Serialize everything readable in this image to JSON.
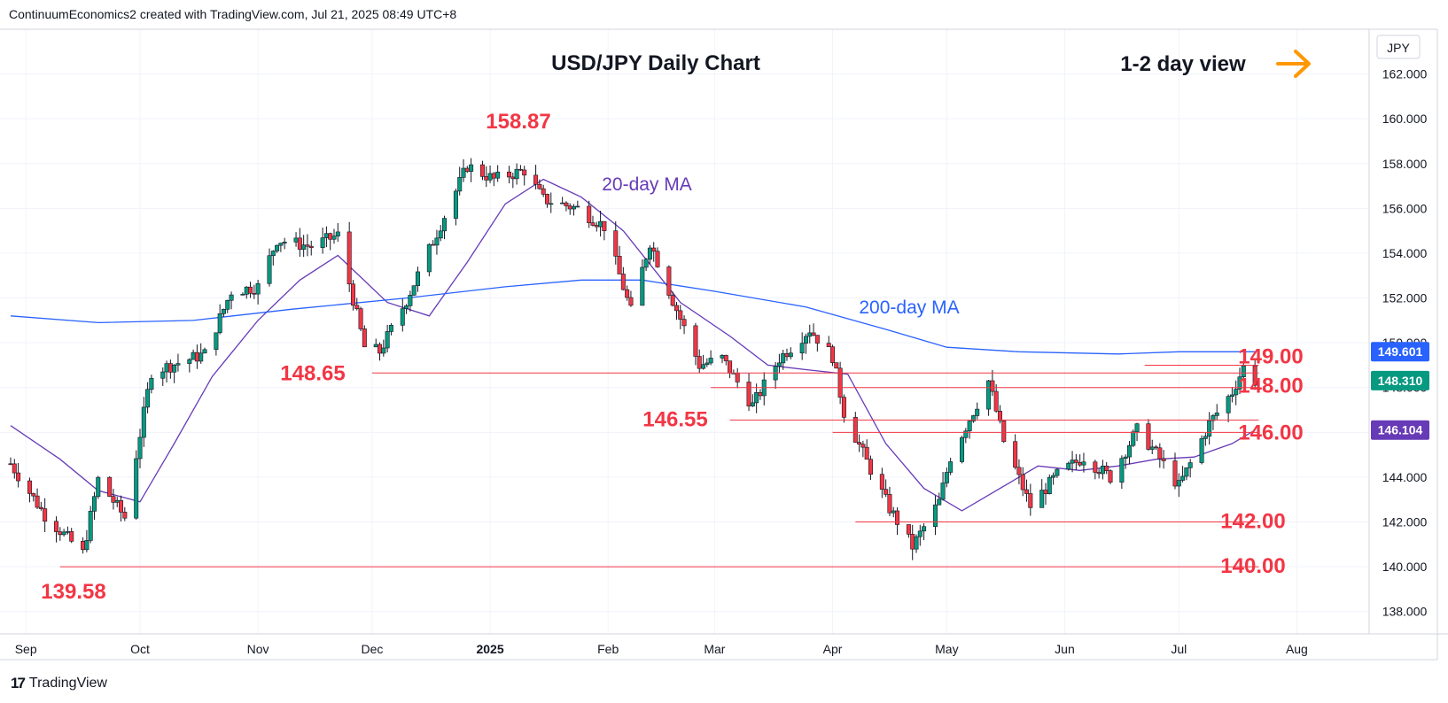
{
  "header": {
    "attribution": "ContinuumEconomics2 created with TradingView.com, Jul 21, 2025 08:49 UTC+8"
  },
  "footer": {
    "brand": "TradingView",
    "logo_glyph": "17"
  },
  "colors": {
    "up": "#089981",
    "down": "#f23645",
    "ma20": "#673ab7",
    "ma200": "#2962ff",
    "level": "#f23645",
    "arrow": "#ff9800",
    "grid": "#f0f3fa",
    "axis_text": "#131722"
  },
  "chart_data": {
    "type": "candlestick",
    "title": "USD/JPY Daily Chart",
    "view_label": "1-2 day view",
    "view_icon": "right-arrow-icon",
    "currency": "JPY",
    "y_axis": {
      "min": 137.0,
      "max": 164.0,
      "ticks": [
        138,
        140,
        142,
        144,
        146,
        148,
        150,
        152,
        154,
        156,
        158,
        160,
        162
      ],
      "tick_labels": [
        "138.000",
        "140.000",
        "142.000",
        "144.000",
        "146.000",
        "148.000",
        "150.000",
        "152.000",
        "154.000",
        "156.000",
        "158.000",
        "160.000",
        "162.000"
      ]
    },
    "x_axis": {
      "start": "2024-08-28",
      "end": "2025-08-20",
      "months": [
        {
          "label": "Sep",
          "date": "2024-09-01"
        },
        {
          "label": "Oct",
          "date": "2024-10-01"
        },
        {
          "label": "Nov",
          "date": "2024-11-01"
        },
        {
          "label": "Dec",
          "date": "2024-12-01"
        },
        {
          "label": "2025",
          "date": "2025-01-01",
          "bold": true
        },
        {
          "label": "Feb",
          "date": "2025-02-01"
        },
        {
          "label": "Mar",
          "date": "2025-03-01"
        },
        {
          "label": "Apr",
          "date": "2025-04-01"
        },
        {
          "label": "May",
          "date": "2025-05-01"
        },
        {
          "label": "Jun",
          "date": "2025-06-01"
        },
        {
          "label": "Jul",
          "date": "2025-07-01"
        },
        {
          "label": "Aug",
          "date": "2025-08-01"
        }
      ]
    },
    "price_tags": [
      {
        "value": 149.601,
        "label": "149.601",
        "color": "#2962ff"
      },
      {
        "value": 148.31,
        "label": "148.310",
        "color": "#089981"
      },
      {
        "value": 146.104,
        "label": "146.104",
        "color": "#673ab7"
      }
    ],
    "levels": [
      {
        "value": 149.0,
        "label": "149.00",
        "from": "2025-06-22",
        "to": "2025-07-22"
      },
      {
        "value": 148.65,
        "label": "148.65",
        "from": "2024-12-01",
        "to": "2025-07-22"
      },
      {
        "value": 148.0,
        "label": "148.00",
        "from": "2025-02-28",
        "to": "2025-07-22"
      },
      {
        "value": 146.55,
        "label": "146.55",
        "from": "2025-03-05",
        "to": "2025-07-22"
      },
      {
        "value": 146.0,
        "label": "146.00",
        "from": "2025-04-01",
        "to": "2025-07-22"
      },
      {
        "value": 142.0,
        "label": "142.00",
        "from": "2025-04-07",
        "to": "2025-07-22"
      },
      {
        "value": 140.0,
        "label": "140.00",
        "from": "2024-09-10",
        "to": "2025-07-22"
      }
    ],
    "annotations": [
      {
        "text": "158.87",
        "date": "2025-01-10",
        "value": 158.87
      },
      {
        "text": "139.58",
        "date": "2024-09-16",
        "value": 139.58
      },
      {
        "text": "20-day MA",
        "date": "2025-01-20",
        "value": 156.8
      },
      {
        "text": "200-day MA",
        "date": "2025-04-20",
        "value": 151.0
      }
    ],
    "series": [
      {
        "name": "USD/JPY",
        "kind": "close",
        "points": [
          [
            "2024-08-28",
            144.6
          ],
          [
            "2024-09-06",
            142.3
          ],
          [
            "2024-09-16",
            140.6
          ],
          [
            "2024-09-20",
            143.9
          ],
          [
            "2024-09-27",
            142.2
          ],
          [
            "2024-10-04",
            148.7
          ],
          [
            "2024-10-11",
            149.1
          ],
          [
            "2024-10-18",
            149.5
          ],
          [
            "2024-10-25",
            152.3
          ],
          [
            "2024-11-01",
            152.5
          ],
          [
            "2024-11-06",
            154.6
          ],
          [
            "2024-11-15",
            154.3
          ],
          [
            "2024-11-22",
            154.8
          ],
          [
            "2024-11-29",
            149.8
          ],
          [
            "2024-12-03",
            149.6
          ],
          [
            "2024-12-10",
            151.9
          ],
          [
            "2024-12-18",
            154.9
          ],
          [
            "2024-12-26",
            157.9
          ],
          [
            "2025-01-02",
            157.3
          ],
          [
            "2025-01-10",
            157.7
          ],
          [
            "2025-01-15",
            156.4
          ],
          [
            "2025-01-24",
            156.0
          ],
          [
            "2025-01-31",
            155.2
          ],
          [
            "2025-02-07",
            151.4
          ],
          [
            "2025-02-12",
            154.5
          ],
          [
            "2025-02-18",
            151.9
          ],
          [
            "2025-02-25",
            149.0
          ],
          [
            "2025-03-03",
            149.3
          ],
          [
            "2025-03-11",
            147.2
          ],
          [
            "2025-03-18",
            149.3
          ],
          [
            "2025-03-26",
            150.6
          ],
          [
            "2025-04-01",
            149.4
          ],
          [
            "2025-04-04",
            146.9
          ],
          [
            "2025-04-10",
            144.7
          ],
          [
            "2025-04-16",
            142.6
          ],
          [
            "2025-04-22",
            140.9
          ],
          [
            "2025-04-29",
            142.9
          ],
          [
            "2025-05-02",
            144.9
          ],
          [
            "2025-05-12",
            148.3
          ],
          [
            "2025-05-16",
            145.6
          ],
          [
            "2025-05-23",
            142.7
          ],
          [
            "2025-05-30",
            144.1
          ],
          [
            "2025-06-06",
            144.9
          ],
          [
            "2025-06-13",
            144.0
          ],
          [
            "2025-06-20",
            146.1
          ],
          [
            "2025-06-24",
            145.3
          ],
          [
            "2025-07-01",
            143.6
          ],
          [
            "2025-07-04",
            144.6
          ],
          [
            "2025-07-09",
            146.4
          ],
          [
            "2025-07-15",
            147.8
          ],
          [
            "2025-07-18",
            148.9
          ],
          [
            "2025-07-21",
            148.3
          ]
        ]
      },
      {
        "name": "20-day MA",
        "kind": "ma",
        "points": [
          [
            "2024-08-28",
            146.3
          ],
          [
            "2024-09-10",
            144.8
          ],
          [
            "2024-09-20",
            143.4
          ],
          [
            "2024-10-01",
            142.9
          ],
          [
            "2024-10-10",
            145.5
          ],
          [
            "2024-10-20",
            148.5
          ],
          [
            "2024-11-01",
            151.0
          ],
          [
            "2024-11-12",
            152.8
          ],
          [
            "2024-11-22",
            153.9
          ],
          [
            "2024-12-05",
            151.8
          ],
          [
            "2024-12-16",
            151.2
          ],
          [
            "2024-12-26",
            153.6
          ],
          [
            "2025-01-05",
            156.2
          ],
          [
            "2025-01-15",
            157.3
          ],
          [
            "2025-01-25",
            156.5
          ],
          [
            "2025-02-05",
            155.0
          ],
          [
            "2025-02-20",
            151.8
          ],
          [
            "2025-03-05",
            150.3
          ],
          [
            "2025-03-15",
            149.0
          ],
          [
            "2025-03-25",
            148.8
          ],
          [
            "2025-04-05",
            148.6
          ],
          [
            "2025-04-15",
            145.5
          ],
          [
            "2025-04-25",
            143.5
          ],
          [
            "2025-05-05",
            142.5
          ],
          [
            "2025-05-15",
            143.5
          ],
          [
            "2025-05-25",
            144.5
          ],
          [
            "2025-06-05",
            144.3
          ],
          [
            "2025-06-15",
            144.5
          ],
          [
            "2025-06-25",
            144.8
          ],
          [
            "2025-07-05",
            144.9
          ],
          [
            "2025-07-15",
            145.5
          ],
          [
            "2025-07-21",
            146.1
          ]
        ]
      },
      {
        "name": "200-day MA",
        "kind": "ma",
        "points": [
          [
            "2024-08-28",
            151.2
          ],
          [
            "2024-09-20",
            150.9
          ],
          [
            "2024-10-15",
            151.0
          ],
          [
            "2024-11-10",
            151.5
          ],
          [
            "2024-12-10",
            152.0
          ],
          [
            "2025-01-05",
            152.5
          ],
          [
            "2025-01-25",
            152.8
          ],
          [
            "2025-02-10",
            152.8
          ],
          [
            "2025-03-01",
            152.3
          ],
          [
            "2025-03-25",
            151.6
          ],
          [
            "2025-04-15",
            150.6
          ],
          [
            "2025-05-01",
            149.8
          ],
          [
            "2025-05-20",
            149.6
          ],
          [
            "2025-06-15",
            149.5
          ],
          [
            "2025-07-01",
            149.6
          ],
          [
            "2025-07-21",
            149.6
          ]
        ]
      }
    ]
  }
}
